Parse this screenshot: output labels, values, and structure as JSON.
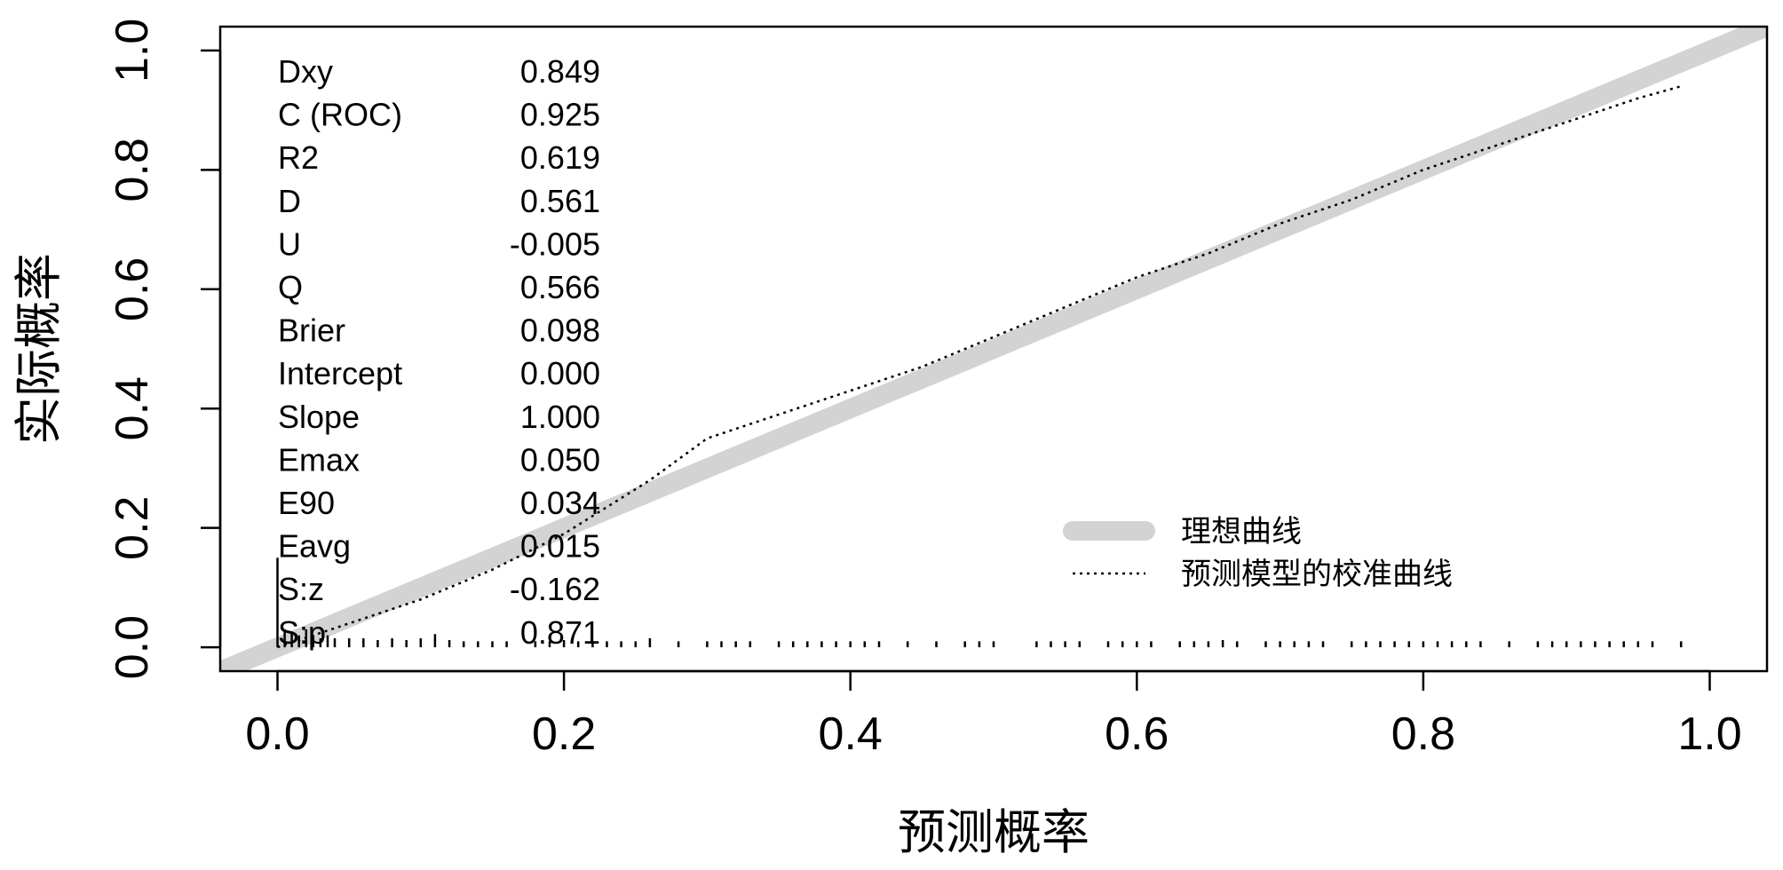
{
  "chart_data": {
    "type": "line",
    "title": "",
    "xlabel": "预测概率",
    "ylabel": "实际概率",
    "xlim": [
      -0.04,
      1.04
    ],
    "ylim": [
      -0.04,
      1.04
    ],
    "xticks": [
      "0.0",
      "0.2",
      "0.4",
      "0.6",
      "0.8",
      "1.0"
    ],
    "yticks": [
      "0.0",
      "0.2",
      "0.4",
      "0.6",
      "0.8",
      "1.0"
    ],
    "grid": false,
    "legend_position": "bottom-right",
    "series": [
      {
        "name": "理想曲线",
        "style": "thick-solid",
        "color": "#d3d3d3",
        "x": [
          -0.04,
          1.04
        ],
        "y": [
          -0.04,
          1.04
        ]
      },
      {
        "name": "预测模型的校准曲线",
        "style": "dotted",
        "color": "#000000",
        "x": [
          0.0,
          0.05,
          0.1,
          0.15,
          0.2,
          0.24,
          0.26,
          0.3,
          0.35,
          0.4,
          0.45,
          0.5,
          0.55,
          0.6,
          0.65,
          0.7,
          0.75,
          0.8,
          0.85,
          0.9,
          0.95,
          0.98
        ],
        "y": [
          0.0,
          0.04,
          0.08,
          0.13,
          0.19,
          0.25,
          0.28,
          0.35,
          0.39,
          0.43,
          0.47,
          0.52,
          0.57,
          0.62,
          0.66,
          0.71,
          0.75,
          0.8,
          0.84,
          0.88,
          0.92,
          0.94
        ]
      }
    ],
    "stats": [
      {
        "label": "Dxy",
        "value": "0.849"
      },
      {
        "label": "C (ROC)",
        "value": "0.925"
      },
      {
        "label": "R2",
        "value": "0.619"
      },
      {
        "label": "D",
        "value": "0.561"
      },
      {
        "label": "U",
        "value": "-0.005"
      },
      {
        "label": "Q",
        "value": "0.566"
      },
      {
        "label": "Brier",
        "value": "0.098"
      },
      {
        "label": "Intercept",
        "value": "0.000"
      },
      {
        "label": "Slope",
        "value": "1.000"
      },
      {
        "label": "Emax",
        "value": "0.050"
      },
      {
        "label": "E90",
        "value": "0.034"
      },
      {
        "label": "Eavg",
        "value": "0.015"
      },
      {
        "label": "S:z",
        "value": "-0.162"
      },
      {
        "label": "S:p",
        "value": "0.871"
      }
    ],
    "rug": [
      {
        "x": 0.0,
        "h": 0.15
      },
      {
        "x": 0.005,
        "h": 0.03
      },
      {
        "x": 0.01,
        "h": 0.025
      },
      {
        "x": 0.015,
        "h": 0.02
      },
      {
        "x": 0.02,
        "h": 0.03
      },
      {
        "x": 0.025,
        "h": 0.02
      },
      {
        "x": 0.03,
        "h": 0.015
      },
      {
        "x": 0.035,
        "h": 0.02
      },
      {
        "x": 0.04,
        "h": 0.015
      },
      {
        "x": 0.05,
        "h": 0.015
      },
      {
        "x": 0.06,
        "h": 0.015
      },
      {
        "x": 0.07,
        "h": 0.012
      },
      {
        "x": 0.08,
        "h": 0.015
      },
      {
        "x": 0.09,
        "h": 0.012
      },
      {
        "x": 0.1,
        "h": 0.015
      },
      {
        "x": 0.11,
        "h": 0.022
      },
      {
        "x": 0.12,
        "h": 0.012
      },
      {
        "x": 0.13,
        "h": 0.01
      },
      {
        "x": 0.14,
        "h": 0.01
      },
      {
        "x": 0.15,
        "h": 0.01
      },
      {
        "x": 0.16,
        "h": 0.01
      },
      {
        "x": 0.18,
        "h": 0.01
      },
      {
        "x": 0.19,
        "h": 0.01
      },
      {
        "x": 0.2,
        "h": 0.012
      },
      {
        "x": 0.21,
        "h": 0.01
      },
      {
        "x": 0.22,
        "h": 0.01
      },
      {
        "x": 0.23,
        "h": 0.01
      },
      {
        "x": 0.24,
        "h": 0.01
      },
      {
        "x": 0.25,
        "h": 0.01
      },
      {
        "x": 0.26,
        "h": 0.015
      },
      {
        "x": 0.28,
        "h": 0.01
      },
      {
        "x": 0.3,
        "h": 0.01
      },
      {
        "x": 0.31,
        "h": 0.01
      },
      {
        "x": 0.32,
        "h": 0.01
      },
      {
        "x": 0.33,
        "h": 0.01
      },
      {
        "x": 0.35,
        "h": 0.01
      },
      {
        "x": 0.36,
        "h": 0.01
      },
      {
        "x": 0.37,
        "h": 0.01
      },
      {
        "x": 0.38,
        "h": 0.01
      },
      {
        "x": 0.39,
        "h": 0.01
      },
      {
        "x": 0.4,
        "h": 0.01
      },
      {
        "x": 0.41,
        "h": 0.01
      },
      {
        "x": 0.42,
        "h": 0.01
      },
      {
        "x": 0.44,
        "h": 0.01
      },
      {
        "x": 0.46,
        "h": 0.01
      },
      {
        "x": 0.48,
        "h": 0.01
      },
      {
        "x": 0.49,
        "h": 0.01
      },
      {
        "x": 0.5,
        "h": 0.01
      },
      {
        "x": 0.53,
        "h": 0.01
      },
      {
        "x": 0.54,
        "h": 0.01
      },
      {
        "x": 0.55,
        "h": 0.01
      },
      {
        "x": 0.56,
        "h": 0.01
      },
      {
        "x": 0.58,
        "h": 0.01
      },
      {
        "x": 0.59,
        "h": 0.01
      },
      {
        "x": 0.6,
        "h": 0.01
      },
      {
        "x": 0.61,
        "h": 0.01
      },
      {
        "x": 0.63,
        "h": 0.01
      },
      {
        "x": 0.64,
        "h": 0.01
      },
      {
        "x": 0.65,
        "h": 0.01
      },
      {
        "x": 0.66,
        "h": 0.012
      },
      {
        "x": 0.67,
        "h": 0.01
      },
      {
        "x": 0.69,
        "h": 0.01
      },
      {
        "x": 0.7,
        "h": 0.01
      },
      {
        "x": 0.71,
        "h": 0.01
      },
      {
        "x": 0.72,
        "h": 0.01
      },
      {
        "x": 0.73,
        "h": 0.01
      },
      {
        "x": 0.75,
        "h": 0.01
      },
      {
        "x": 0.76,
        "h": 0.01
      },
      {
        "x": 0.77,
        "h": 0.01
      },
      {
        "x": 0.78,
        "h": 0.01
      },
      {
        "x": 0.79,
        "h": 0.01
      },
      {
        "x": 0.8,
        "h": 0.01
      },
      {
        "x": 0.81,
        "h": 0.01
      },
      {
        "x": 0.82,
        "h": 0.01
      },
      {
        "x": 0.83,
        "h": 0.01
      },
      {
        "x": 0.84,
        "h": 0.01
      },
      {
        "x": 0.86,
        "h": 0.01
      },
      {
        "x": 0.88,
        "h": 0.01
      },
      {
        "x": 0.89,
        "h": 0.01
      },
      {
        "x": 0.9,
        "h": 0.01
      },
      {
        "x": 0.91,
        "h": 0.01
      },
      {
        "x": 0.92,
        "h": 0.01
      },
      {
        "x": 0.93,
        "h": 0.01
      },
      {
        "x": 0.94,
        "h": 0.01
      },
      {
        "x": 0.95,
        "h": 0.01
      },
      {
        "x": 0.96,
        "h": 0.01
      },
      {
        "x": 0.98,
        "h": 0.01
      }
    ]
  }
}
